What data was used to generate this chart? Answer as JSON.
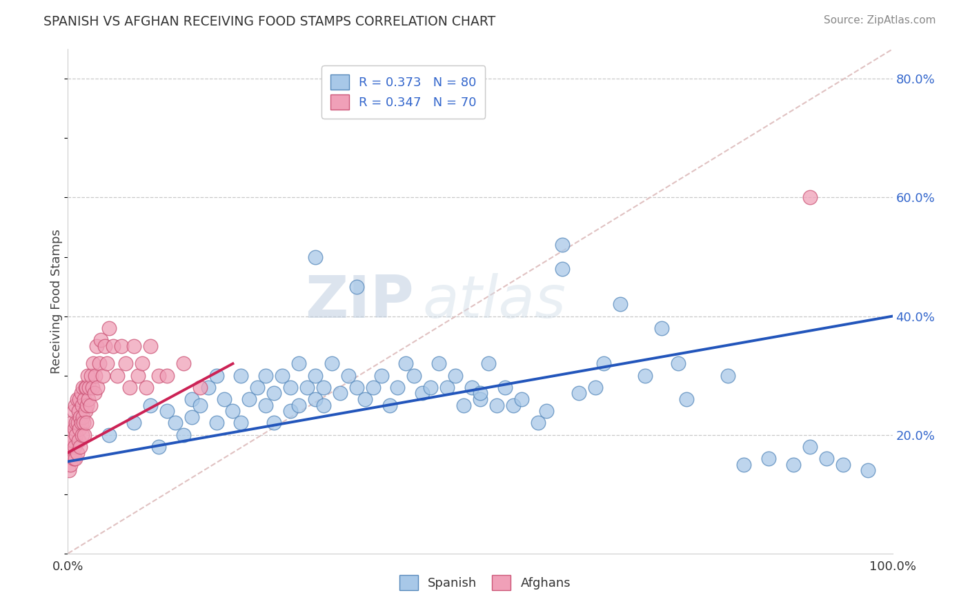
{
  "title": "SPANISH VS AFGHAN RECEIVING FOOD STAMPS CORRELATION CHART",
  "source": "Source: ZipAtlas.com",
  "ylabel": "Receiving Food Stamps",
  "watermark_zip": "ZIP",
  "watermark_atlas": "atlas",
  "xlim": [
    0.0,
    1.0
  ],
  "ylim": [
    0.0,
    0.85
  ],
  "ytick_values": [
    0.2,
    0.4,
    0.6,
    0.8
  ],
  "xtick_values": [
    0.0,
    1.0
  ],
  "xtick_labels": [
    "0.0%",
    "100.0%"
  ],
  "ytick_labels": [
    "20.0%",
    "40.0%",
    "60.0%",
    "80.0%"
  ],
  "grid_color": "#c8c8c8",
  "grid_linestyle": "--",
  "spanish_face": "#a8c8e8",
  "spanish_edge": "#5588bb",
  "afghan_face": "#f0a0b8",
  "afghan_edge": "#cc5577",
  "trend_spanish": "#2255bb",
  "trend_afghan": "#cc2255",
  "diag_color": "#ddbbbb",
  "diag_linestyle": "--",
  "R_spanish": 0.373,
  "N_spanish": 80,
  "R_afghan": 0.347,
  "N_afghan": 70,
  "legend_labels_bottom": [
    "Spanish",
    "Afghans"
  ],
  "title_color": "#333333",
  "source_color": "#888888",
  "ytick_color": "#3366cc",
  "spanish_x": [
    0.05,
    0.08,
    0.1,
    0.11,
    0.12,
    0.13,
    0.14,
    0.15,
    0.15,
    0.16,
    0.17,
    0.18,
    0.18,
    0.19,
    0.2,
    0.21,
    0.21,
    0.22,
    0.23,
    0.24,
    0.24,
    0.25,
    0.25,
    0.26,
    0.27,
    0.27,
    0.28,
    0.28,
    0.29,
    0.3,
    0.3,
    0.31,
    0.31,
    0.32,
    0.33,
    0.34,
    0.35,
    0.36,
    0.37,
    0.38,
    0.39,
    0.4,
    0.41,
    0.42,
    0.43,
    0.44,
    0.45,
    0.46,
    0.47,
    0.48,
    0.49,
    0.5,
    0.51,
    0.52,
    0.53,
    0.54,
    0.55,
    0.57,
    0.58,
    0.6,
    0.62,
    0.64,
    0.65,
    0.67,
    0.7,
    0.72,
    0.74,
    0.75,
    0.8,
    0.82,
    0.85,
    0.88,
    0.9,
    0.92,
    0.94,
    0.97,
    0.3,
    0.35,
    0.5,
    0.6
  ],
  "spanish_y": [
    0.2,
    0.22,
    0.25,
    0.18,
    0.24,
    0.22,
    0.2,
    0.23,
    0.26,
    0.25,
    0.28,
    0.22,
    0.3,
    0.26,
    0.24,
    0.3,
    0.22,
    0.26,
    0.28,
    0.25,
    0.3,
    0.27,
    0.22,
    0.3,
    0.28,
    0.24,
    0.32,
    0.25,
    0.28,
    0.26,
    0.3,
    0.28,
    0.25,
    0.32,
    0.27,
    0.3,
    0.28,
    0.26,
    0.28,
    0.3,
    0.25,
    0.28,
    0.32,
    0.3,
    0.27,
    0.28,
    0.32,
    0.28,
    0.3,
    0.25,
    0.28,
    0.26,
    0.32,
    0.25,
    0.28,
    0.25,
    0.26,
    0.22,
    0.24,
    0.48,
    0.27,
    0.28,
    0.32,
    0.42,
    0.3,
    0.38,
    0.32,
    0.26,
    0.3,
    0.15,
    0.16,
    0.15,
    0.18,
    0.16,
    0.15,
    0.14,
    0.5,
    0.45,
    0.27,
    0.52
  ],
  "afghan_x": [
    0.001,
    0.002,
    0.003,
    0.004,
    0.005,
    0.005,
    0.006,
    0.007,
    0.007,
    0.008,
    0.008,
    0.009,
    0.009,
    0.01,
    0.01,
    0.011,
    0.011,
    0.012,
    0.013,
    0.013,
    0.014,
    0.014,
    0.015,
    0.015,
    0.016,
    0.016,
    0.017,
    0.017,
    0.018,
    0.018,
    0.019,
    0.02,
    0.02,
    0.021,
    0.021,
    0.022,
    0.022,
    0.023,
    0.024,
    0.025,
    0.026,
    0.027,
    0.028,
    0.03,
    0.031,
    0.032,
    0.033,
    0.035,
    0.036,
    0.038,
    0.04,
    0.042,
    0.045,
    0.047,
    0.05,
    0.055,
    0.06,
    0.065,
    0.07,
    0.075,
    0.08,
    0.085,
    0.09,
    0.095,
    0.1,
    0.11,
    0.12,
    0.14,
    0.16,
    0.9
  ],
  "afghan_y": [
    0.14,
    0.18,
    0.15,
    0.2,
    0.17,
    0.22,
    0.19,
    0.16,
    0.24,
    0.18,
    0.21,
    0.16,
    0.25,
    0.2,
    0.22,
    0.17,
    0.26,
    0.22,
    0.19,
    0.24,
    0.21,
    0.26,
    0.23,
    0.18,
    0.27,
    0.22,
    0.25,
    0.2,
    0.28,
    0.23,
    0.22,
    0.26,
    0.2,
    0.28,
    0.24,
    0.22,
    0.28,
    0.25,
    0.3,
    0.26,
    0.28,
    0.25,
    0.3,
    0.28,
    0.32,
    0.27,
    0.3,
    0.35,
    0.28,
    0.32,
    0.36,
    0.3,
    0.35,
    0.32,
    0.38,
    0.35,
    0.3,
    0.35,
    0.32,
    0.28,
    0.35,
    0.3,
    0.32,
    0.28,
    0.35,
    0.3,
    0.3,
    0.32,
    0.28,
    0.6
  ],
  "trend_sp_x0": 0.0,
  "trend_sp_y0": 0.155,
  "trend_sp_x1": 1.0,
  "trend_sp_y1": 0.4,
  "trend_af_x0": 0.0,
  "trend_af_y0": 0.17,
  "trend_af_x1": 0.2,
  "trend_af_y1": 0.32
}
